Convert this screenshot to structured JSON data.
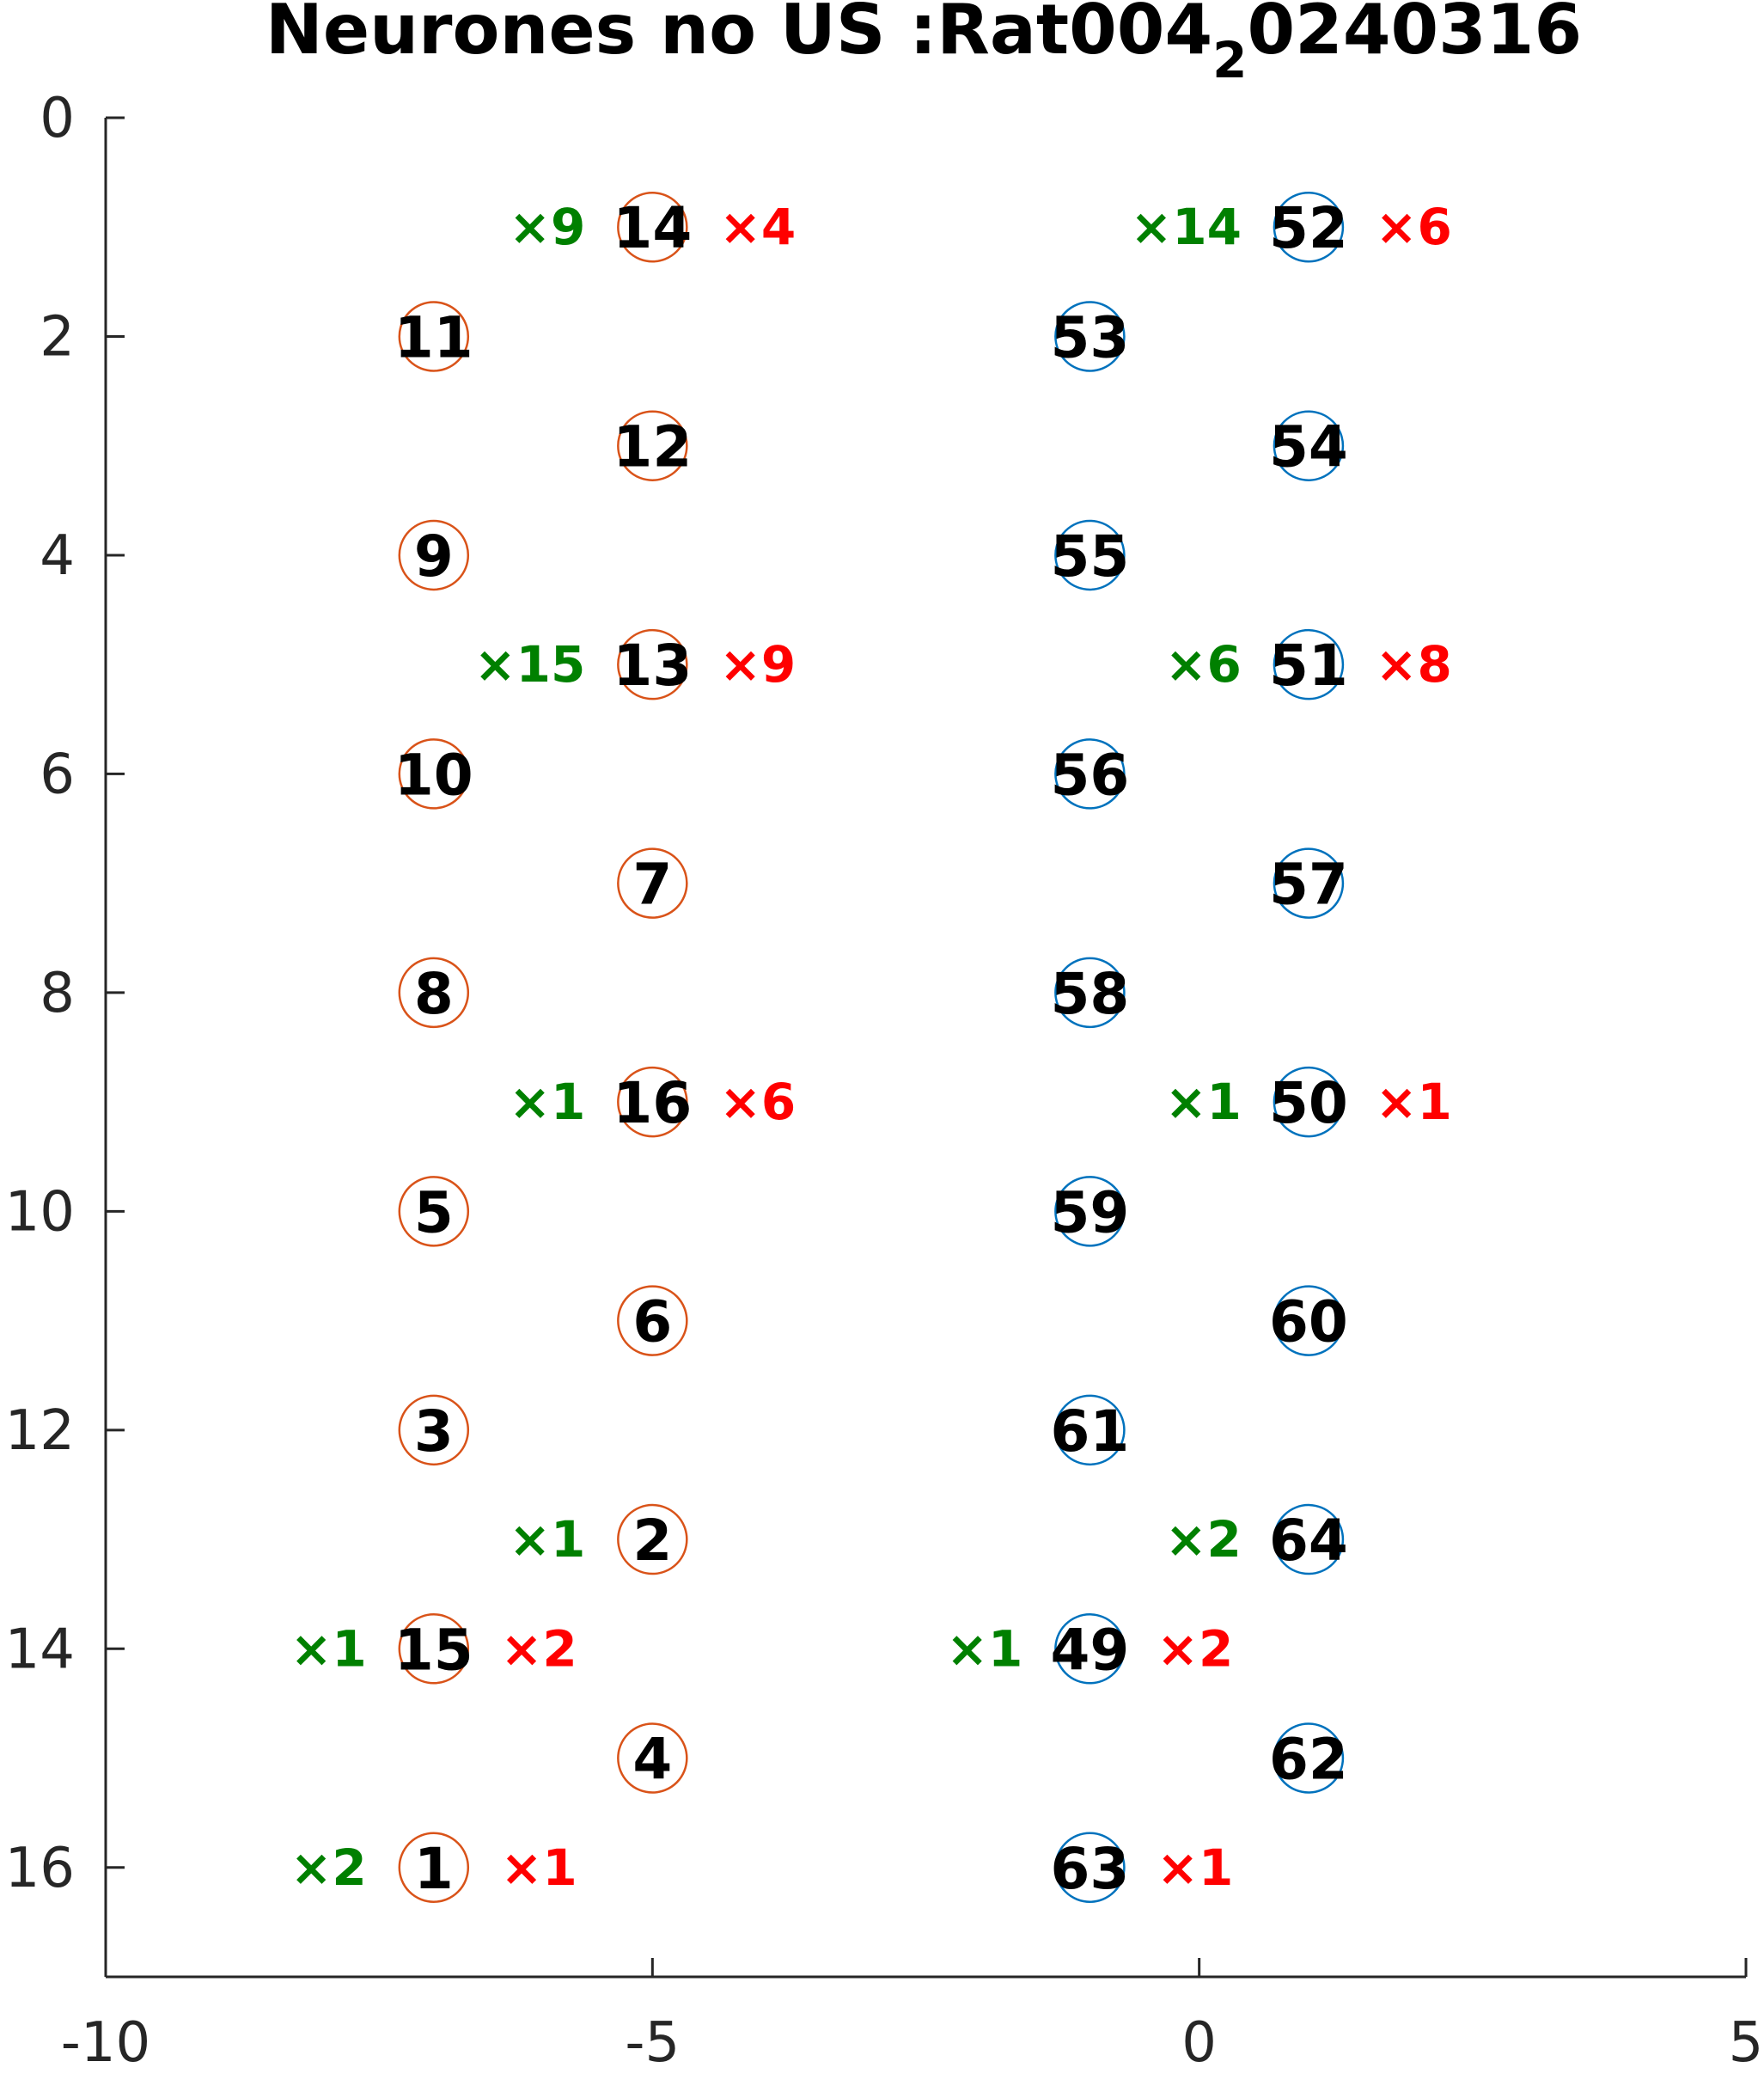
{
  "chart_data": {
    "type": "scatter",
    "title": "Neurones no US :Rat004",
    "title_subscript": "2",
    "title_suffix": "0240316",
    "xlabel": "",
    "ylabel": "",
    "xlim": [
      -10,
      5
    ],
    "ylim": [
      0,
      17
    ],
    "y_reversed": true,
    "grid": false,
    "x_ticks": [
      -10,
      -5,
      0,
      5
    ],
    "x_tick_labels": [
      "-10",
      "-5",
      "0",
      "5"
    ],
    "y_ticks": [
      0,
      2,
      4,
      6,
      8,
      10,
      12,
      14,
      16
    ],
    "y_tick_labels": [
      "0",
      "2",
      "4",
      "6",
      "8",
      "10",
      "12",
      "14",
      "16"
    ],
    "colors": {
      "left_shank": "#d95319",
      "right_shank": "#0072bd",
      "left_count": "#008000",
      "right_count": "#ff0000",
      "label": "#000000"
    },
    "points": [
      {
        "x": -5,
        "y": 1,
        "label": "14",
        "group": "left_shank",
        "left_count": "×9",
        "right_count": "×4"
      },
      {
        "x": -7,
        "y": 2,
        "label": "11",
        "group": "left_shank"
      },
      {
        "x": -5,
        "y": 3,
        "label": "12",
        "group": "left_shank"
      },
      {
        "x": -7,
        "y": 4,
        "label": "9",
        "group": "left_shank"
      },
      {
        "x": -5,
        "y": 5,
        "label": "13",
        "group": "left_shank",
        "left_count": "×15",
        "right_count": "×9"
      },
      {
        "x": -7,
        "y": 6,
        "label": "10",
        "group": "left_shank"
      },
      {
        "x": -5,
        "y": 7,
        "label": "7",
        "group": "left_shank"
      },
      {
        "x": -7,
        "y": 8,
        "label": "8",
        "group": "left_shank"
      },
      {
        "x": -5,
        "y": 9,
        "label": "16",
        "group": "left_shank",
        "left_count": "×1",
        "right_count": "×6"
      },
      {
        "x": -7,
        "y": 10,
        "label": "5",
        "group": "left_shank"
      },
      {
        "x": -5,
        "y": 11,
        "label": "6",
        "group": "left_shank"
      },
      {
        "x": -7,
        "y": 12,
        "label": "3",
        "group": "left_shank"
      },
      {
        "x": -5,
        "y": 13,
        "label": "2",
        "group": "left_shank",
        "left_count": "×1"
      },
      {
        "x": -7,
        "y": 14,
        "label": "15",
        "group": "left_shank",
        "left_count": "×1",
        "right_count": "×2"
      },
      {
        "x": -5,
        "y": 15,
        "label": "4",
        "group": "left_shank"
      },
      {
        "x": -7,
        "y": 16,
        "label": "1",
        "group": "left_shank",
        "left_count": "×2",
        "right_count": "×1"
      },
      {
        "x": 1,
        "y": 1,
        "label": "52",
        "group": "right_shank",
        "left_count": "×14",
        "right_count": "×6"
      },
      {
        "x": -1,
        "y": 2,
        "label": "53",
        "group": "right_shank"
      },
      {
        "x": 1,
        "y": 3,
        "label": "54",
        "group": "right_shank"
      },
      {
        "x": -1,
        "y": 4,
        "label": "55",
        "group": "right_shank"
      },
      {
        "x": 1,
        "y": 5,
        "label": "51",
        "group": "right_shank",
        "left_count": "×6",
        "right_count": "×8"
      },
      {
        "x": -1,
        "y": 6,
        "label": "56",
        "group": "right_shank"
      },
      {
        "x": 1,
        "y": 7,
        "label": "57",
        "group": "right_shank"
      },
      {
        "x": -1,
        "y": 8,
        "label": "58",
        "group": "right_shank"
      },
      {
        "x": 1,
        "y": 9,
        "label": "50",
        "group": "right_shank",
        "left_count": "×1",
        "right_count": "×1"
      },
      {
        "x": -1,
        "y": 10,
        "label": "59",
        "group": "right_shank"
      },
      {
        "x": 1,
        "y": 11,
        "label": "60",
        "group": "right_shank"
      },
      {
        "x": -1,
        "y": 12,
        "label": "61",
        "group": "right_shank"
      },
      {
        "x": 1,
        "y": 13,
        "label": "64",
        "group": "right_shank",
        "left_count": "×2"
      },
      {
        "x": -1,
        "y": 14,
        "label": "49",
        "group": "right_shank",
        "left_count": "×1",
        "right_count": "×2"
      },
      {
        "x": 1,
        "y": 15,
        "label": "62",
        "group": "right_shank"
      },
      {
        "x": -1,
        "y": 16,
        "label": "63",
        "group": "right_shank",
        "right_count": "×1"
      }
    ]
  }
}
